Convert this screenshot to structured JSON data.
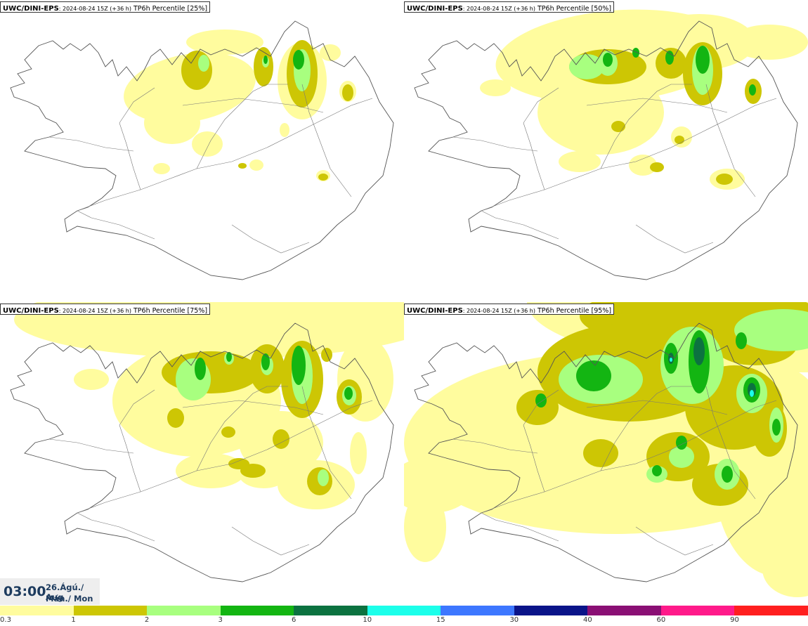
{
  "panels": [
    {
      "model": "UWC/DINI-EPS",
      "run": ": 2024-08-24 15Z (+36 h)",
      "param": " TP6h Percentile [25%]",
      "level": 1
    },
    {
      "model": "UWC/DINI-EPS",
      "run": ": 2024-08-24 15Z (+36 h)",
      "param": " TP6h Percentile [50%]",
      "level": 2
    },
    {
      "model": "UWC/DINI-EPS",
      "run": ": 2024-08-24 15Z (+36 h)",
      "param": " TP6h Percentile [75%]",
      "level": 3
    },
    {
      "model": "UWC/DINI-EPS",
      "run": ": 2024-08-24 15Z (+36 h)",
      "param": " TP6h Percentile [95%]",
      "level": 4
    }
  ],
  "valid_time": {
    "time": "03:00",
    "date": "26.Ágú./ Aug",
    "weekday": "Mán./ Mon"
  },
  "legend": {
    "colors": [
      "#fffc9e",
      "#cdc604",
      "#a8ff7f",
      "#13b512",
      "#0c7240",
      "#1cffea",
      "#3d77ff",
      "#0a1489",
      "#8a0f74",
      "#ff1a8a",
      "#ff1f1f"
    ],
    "labels": [
      "0.3",
      "1",
      "2",
      "3",
      "6",
      "10",
      "15",
      "30",
      "40",
      "60",
      "90"
    ]
  }
}
